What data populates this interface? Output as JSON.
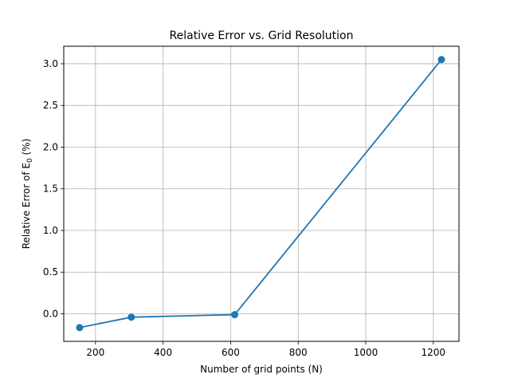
{
  "chart_data": {
    "type": "line",
    "title": "Relative Error vs. Grid Resolution",
    "xlabel": "Number of grid points (N)",
    "ylabel": {
      "main": "Relative Error of E",
      "subscript": "0",
      "suffix": " (%)"
    },
    "xlim": [
      106,
      1276
    ],
    "ylim": [
      -0.33,
      3.21
    ],
    "xticks": [
      200,
      400,
      600,
      800,
      1000,
      1200
    ],
    "xtick_labels": [
      "200",
      "400",
      "600",
      "800",
      "1000",
      "1200"
    ],
    "yticks": [
      0.0,
      0.5,
      1.0,
      1.5,
      2.0,
      2.5,
      3.0
    ],
    "ytick_labels": [
      "0.0",
      "0.5",
      "1.0",
      "1.5",
      "2.0",
      "2.5",
      "3.0"
    ],
    "grid": true,
    "series": [
      {
        "x": [
          153,
          306,
          612,
          1224
        ],
        "y": [
          -0.165,
          -0.04,
          -0.01,
          3.05
        ],
        "color": "#1f77b4",
        "marker": "circle"
      }
    ]
  }
}
